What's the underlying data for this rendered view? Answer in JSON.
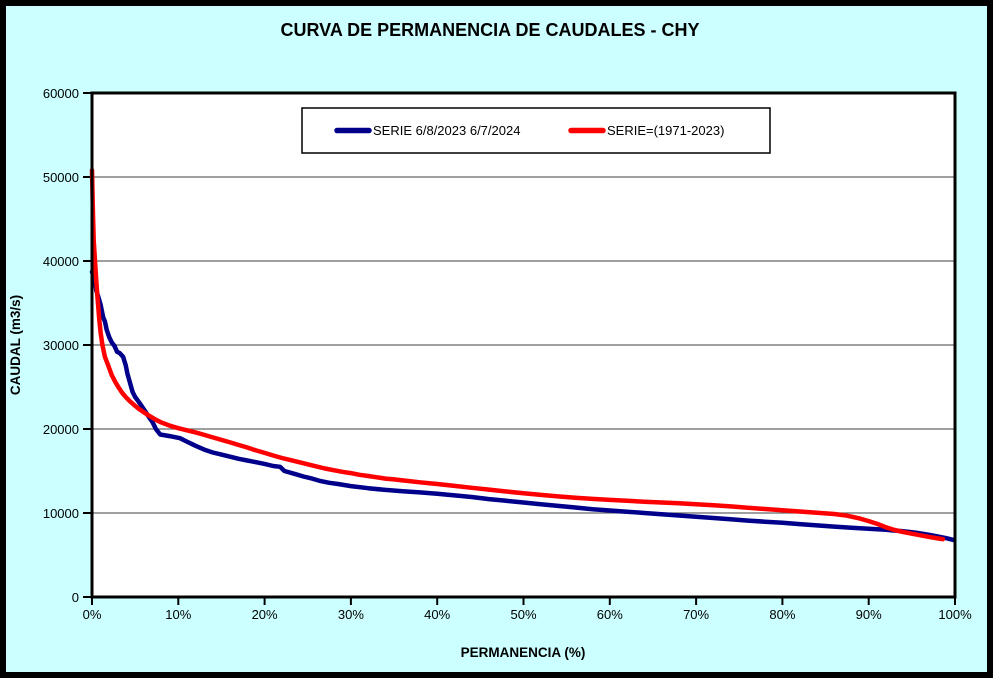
{
  "page": {
    "background_color": "#CCFFFF",
    "frame_border_color": "#000000"
  },
  "chart_data": {
    "type": "line",
    "title": "CURVA DE PERMANENCIA DE CAUDALES - CHY",
    "xlabel": "PERMANENCIA (%)",
    "ylabel": "CAUDAL (m3/s)",
    "xlim": [
      0,
      100
    ],
    "ylim": [
      0,
      60000
    ],
    "x_ticks": [
      "0%",
      "10%",
      "20%",
      "30%",
      "40%",
      "50%",
      "60%",
      "70%",
      "80%",
      "90%",
      "100%"
    ],
    "y_ticks": [
      "0",
      "10000",
      "20000",
      "30000",
      "40000",
      "50000",
      "60000"
    ],
    "grid": "horizontal-only",
    "plot_background": "#FFFFFF",
    "gridline_color": "#666666",
    "legend_position": "top-center-inside",
    "series": [
      {
        "id": "serie-2023-2024",
        "name": "SERIE 6/8/2023 6/7/2024",
        "color": "#00008B",
        "line_width": 4.5,
        "points": [
          [
            0,
            38700
          ],
          [
            0.3,
            38000
          ],
          [
            0.5,
            36500
          ],
          [
            0.8,
            35500
          ],
          [
            1.0,
            34800
          ],
          [
            1.3,
            33300
          ],
          [
            1.5,
            32800
          ],
          [
            1.7,
            31800
          ],
          [
            2.0,
            30900
          ],
          [
            2.3,
            30300
          ],
          [
            2.6,
            29900
          ],
          [
            2.9,
            29200
          ],
          [
            3.2,
            29050
          ],
          [
            3.6,
            28600
          ],
          [
            3.9,
            27600
          ],
          [
            4.1,
            26600
          ],
          [
            4.4,
            25500
          ],
          [
            4.7,
            24400
          ],
          [
            5.0,
            23800
          ],
          [
            5.4,
            23250
          ],
          [
            5.8,
            22650
          ],
          [
            6.2,
            22050
          ],
          [
            6.6,
            21400
          ],
          [
            7.0,
            20850
          ],
          [
            7.4,
            20000
          ],
          [
            7.9,
            19350
          ],
          [
            9.0,
            19150
          ],
          [
            10.2,
            18900
          ],
          [
            11.0,
            18500
          ],
          [
            12.0,
            18000
          ],
          [
            13.0,
            17550
          ],
          [
            14.0,
            17200
          ],
          [
            15.0,
            16950
          ],
          [
            16.0,
            16700
          ],
          [
            17.0,
            16450
          ],
          [
            18.0,
            16250
          ],
          [
            19.0,
            16050
          ],
          [
            20.0,
            15850
          ],
          [
            21.0,
            15600
          ],
          [
            21.8,
            15500
          ],
          [
            22.3,
            15000
          ],
          [
            23.5,
            14650
          ],
          [
            24.5,
            14350
          ],
          [
            25.5,
            14100
          ],
          [
            26.5,
            13800
          ],
          [
            27.5,
            13600
          ],
          [
            28.5,
            13450
          ],
          [
            30.0,
            13200
          ],
          [
            32.0,
            12950
          ],
          [
            34.0,
            12750
          ],
          [
            36.0,
            12600
          ],
          [
            38.0,
            12450
          ],
          [
            40.0,
            12300
          ],
          [
            42.0,
            12100
          ],
          [
            44.0,
            11900
          ],
          [
            46.0,
            11650
          ],
          [
            48.0,
            11450
          ],
          [
            50.0,
            11250
          ],
          [
            52.0,
            11050
          ],
          [
            54.0,
            10850
          ],
          [
            56.0,
            10650
          ],
          [
            58.0,
            10450
          ],
          [
            60.0,
            10300
          ],
          [
            62.0,
            10150
          ],
          [
            64.0,
            10000
          ],
          [
            66.0,
            9850
          ],
          [
            68.0,
            9700
          ],
          [
            70.0,
            9550
          ],
          [
            72.0,
            9400
          ],
          [
            74.0,
            9250
          ],
          [
            76.0,
            9100
          ],
          [
            78.0,
            8970
          ],
          [
            80.0,
            8850
          ],
          [
            82.0,
            8680
          ],
          [
            84.0,
            8520
          ],
          [
            86.0,
            8380
          ],
          [
            88.0,
            8250
          ],
          [
            90.0,
            8120
          ],
          [
            92.0,
            8000
          ],
          [
            94.0,
            7820
          ],
          [
            95.5,
            7650
          ],
          [
            97.0,
            7400
          ],
          [
            98.0,
            7200
          ],
          [
            99.0,
            7000
          ],
          [
            99.8,
            6800
          ]
        ]
      },
      {
        "id": "serie-1971-2023",
        "name": "SERIE=(1971-2023)",
        "color": "#FF0000",
        "line_width": 4.5,
        "points": [
          [
            0,
            50800
          ],
          [
            0.1,
            46000
          ],
          [
            0.2,
            42500
          ],
          [
            0.35,
            40000
          ],
          [
            0.5,
            37600
          ],
          [
            0.65,
            35500
          ],
          [
            0.85,
            33000
          ],
          [
            1.0,
            31500
          ],
          [
            1.2,
            30000
          ],
          [
            1.5,
            28600
          ],
          [
            1.9,
            27500
          ],
          [
            2.3,
            26400
          ],
          [
            2.7,
            25600
          ],
          [
            3.1,
            24900
          ],
          [
            3.5,
            24300
          ],
          [
            4.0,
            23700
          ],
          [
            4.5,
            23200
          ],
          [
            5.0,
            22750
          ],
          [
            5.5,
            22350
          ],
          [
            6.0,
            22000
          ],
          [
            6.5,
            21650
          ],
          [
            7.0,
            21350
          ],
          [
            7.5,
            21050
          ],
          [
            8.0,
            20800
          ],
          [
            9.0,
            20400
          ],
          [
            10.0,
            20100
          ],
          [
            11.0,
            19850
          ],
          [
            12.0,
            19600
          ],
          [
            13.0,
            19300
          ],
          [
            14.0,
            19000
          ],
          [
            15.0,
            18700
          ],
          [
            16.0,
            18400
          ],
          [
            17.0,
            18100
          ],
          [
            18.0,
            17800
          ],
          [
            19.0,
            17450
          ],
          [
            20.0,
            17150
          ],
          [
            21.0,
            16850
          ],
          [
            22.0,
            16550
          ],
          [
            23.0,
            16300
          ],
          [
            24.0,
            16050
          ],
          [
            25.0,
            15800
          ],
          [
            26.0,
            15550
          ],
          [
            27.0,
            15300
          ],
          [
            28.0,
            15100
          ],
          [
            29.0,
            14900
          ],
          [
            30.0,
            14750
          ],
          [
            31.0,
            14550
          ],
          [
            32.0,
            14400
          ],
          [
            33.0,
            14250
          ],
          [
            34.0,
            14100
          ],
          [
            35.0,
            14000
          ],
          [
            36.0,
            13880
          ],
          [
            38.0,
            13650
          ],
          [
            40.0,
            13450
          ],
          [
            42.0,
            13230
          ],
          [
            44.0,
            13000
          ],
          [
            46.0,
            12780
          ],
          [
            48.0,
            12560
          ],
          [
            50.0,
            12350
          ],
          [
            52.0,
            12160
          ],
          [
            54.0,
            11980
          ],
          [
            56.0,
            11820
          ],
          [
            58.0,
            11680
          ],
          [
            60.0,
            11560
          ],
          [
            62.0,
            11450
          ],
          [
            64.0,
            11350
          ],
          [
            66.0,
            11250
          ],
          [
            68.0,
            11150
          ],
          [
            70.0,
            11050
          ],
          [
            72.0,
            10920
          ],
          [
            74.0,
            10780
          ],
          [
            76.0,
            10630
          ],
          [
            78.0,
            10480
          ],
          [
            80.0,
            10330
          ],
          [
            82.0,
            10180
          ],
          [
            84.0,
            10040
          ],
          [
            86.0,
            9880
          ],
          [
            87.5,
            9680
          ],
          [
            89.0,
            9330
          ],
          [
            90.0,
            9030
          ],
          [
            91.0,
            8700
          ],
          [
            92.0,
            8300
          ],
          [
            93.0,
            7980
          ],
          [
            94.0,
            7740
          ],
          [
            95.0,
            7540
          ],
          [
            96.0,
            7340
          ],
          [
            97.0,
            7150
          ],
          [
            98.0,
            6980
          ],
          [
            98.6,
            6880
          ]
        ]
      }
    ]
  }
}
